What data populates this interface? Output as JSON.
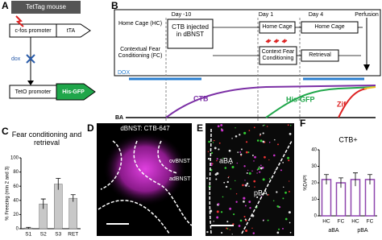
{
  "panel_a": {
    "label": "A",
    "title": "TetTag mouse",
    "promoter1": "c-fos promoter",
    "gene1": "tTA",
    "drug": "dox",
    "promoter2": "TetO promoter",
    "gene2": "His-GFP"
  },
  "panel_b": {
    "label": "B",
    "days": [
      "Day -10",
      "Day 1",
      "Day 4"
    ],
    "end": "Perfusion",
    "rows": [
      "Home Cage (HC)",
      "Contextual Fear Conditioning (FC)"
    ],
    "steps": [
      "CTB injected in dBNST",
      "Home Cage",
      "Context Fear Conditioning",
      "Home Cage",
      "Retrieval"
    ],
    "drug": "DOX",
    "curves": [
      "CTB",
      "His-GFP",
      "Zif"
    ],
    "region": "BA"
  },
  "panel_d": {
    "label": "D",
    "title": "dBNST: CTB-647",
    "regions": [
      "ovBNST",
      "adBNST"
    ]
  },
  "panel_e": {
    "label": "E",
    "regions": [
      "aBA",
      "pBA"
    ]
  },
  "chart_data": [
    {
      "type": "bar",
      "panel": "C",
      "title": "Fear conditioning and retrieval",
      "ylabel": "% Freezing (min 2 and 3)",
      "categories": [
        "S1",
        "S2",
        "S3",
        "RET"
      ],
      "values": [
        1,
        35,
        63,
        43
      ],
      "errors": [
        1,
        7,
        8,
        5
      ],
      "color": "#c8c8c8",
      "ylim": [
        0,
        100
      ],
      "yticks": [
        0,
        20,
        40,
        60,
        80,
        100
      ]
    },
    {
      "type": "bar",
      "panel": "F",
      "title": "CTB+",
      "ylabel": "%DAPI",
      "categories": [
        "HC",
        "FC",
        "HC",
        "FC"
      ],
      "groups": [
        "aBA",
        "pBA"
      ],
      "values": [
        22,
        20,
        22,
        22
      ],
      "errors": [
        3,
        3,
        4,
        3
      ],
      "color": "#8e44ad",
      "ylim": [
        0,
        40
      ],
      "yticks": [
        0,
        10,
        20,
        30,
        40
      ]
    }
  ]
}
